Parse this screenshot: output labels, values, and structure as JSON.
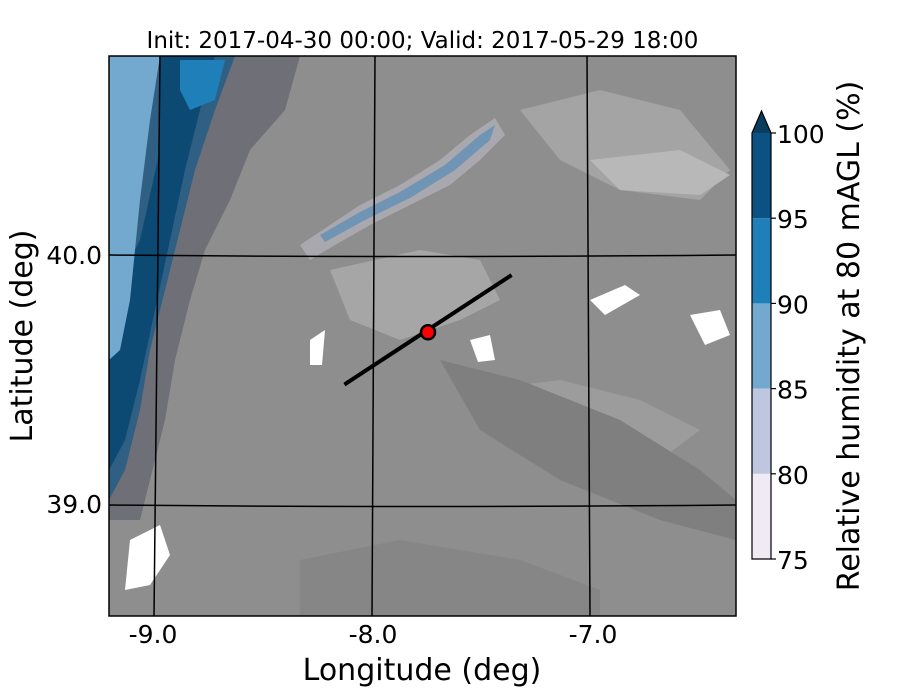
{
  "chart_data": {
    "type": "heatmap",
    "title": "Init: 2017-04-30 00:00; Valid: 2017-05-29 18:00",
    "xlabel": "Longitude (deg)",
    "ylabel": "Latitude (deg)",
    "x_ticks": [
      "-9.0",
      "-8.0",
      "-7.0"
    ],
    "y_ticks": [
      "40.0",
      "39.0"
    ],
    "x_tick_values": [
      -9.0,
      -8.0,
      -7.0
    ],
    "y_tick_values": [
      40.0,
      39.0
    ],
    "xlim": [
      -9.2,
      -6.35
    ],
    "ylim": [
      38.55,
      40.8
    ],
    "grid": true,
    "colorbar": {
      "label": "Relative humidity at 80 mAGL (%)",
      "ticks": [
        "75",
        "80",
        "85",
        "90",
        "95",
        "100"
      ],
      "tick_values": [
        75,
        80,
        85,
        90,
        95,
        100
      ],
      "extend": "max",
      "colors": [
        "#efeaf4",
        "#bfc7e0",
        "#74a9cf",
        "#1f7fb8",
        "#0b5282",
        "#083d5e"
      ]
    },
    "cross_section_line": {
      "start": {
        "lon": -8.13,
        "lat": 39.48
      },
      "end": {
        "lon": -7.37,
        "lat": 39.92
      },
      "color": "#000000"
    },
    "marker": {
      "lon": -7.75,
      "lat": 39.69,
      "color": "#ff0000"
    },
    "overlay_color": "#8e8e8e"
  }
}
